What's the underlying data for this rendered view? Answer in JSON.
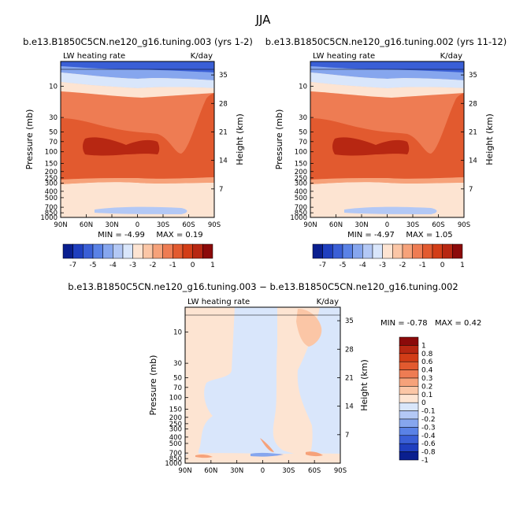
{
  "figure": {
    "title": "JJA"
  },
  "colors": {
    "panel_scale": [
      "#0a1f8f",
      "#1f3fbf",
      "#3a5fd6",
      "#5a82e6",
      "#86a6ee",
      "#b3c8f5",
      "#d9e6fb",
      "#fde4d2",
      "#fbc6a6",
      "#f6a27a",
      "#ee7c53",
      "#e25a2f",
      "#d23d17",
      "#b72712",
      "#8b0a0a"
    ],
    "diff_scale": [
      "#0a1f8f",
      "#1f3fbf",
      "#3a5fd6",
      "#5a82e6",
      "#86a6ee",
      "#b3c8f5",
      "#d9e6fb",
      "#fde4d2",
      "#fbc6a6",
      "#f6a27a",
      "#ee7c53",
      "#e25a2f",
      "#d23d17",
      "#b72712",
      "#8b0a0a"
    ]
  },
  "chart_data": [
    {
      "type": "heatmap",
      "title": "b.e13.B1850C5CN.ne120_g16.tuning.003 (yrs 1-2)",
      "left_label": "LW heating rate",
      "right_label": "K/day",
      "ylabel": "Pressure (mb)",
      "y2label": "Height (km)",
      "x_ticks": [
        "90N",
        "60N",
        "30N",
        "0",
        "30S",
        "60S",
        "90S"
      ],
      "y_ticks": [
        "10",
        "30",
        "50",
        "70",
        "100",
        "150",
        "200",
        "250",
        "300",
        "400",
        "500",
        "700",
        "850",
        "1000"
      ],
      "y2_ticks": [
        "35",
        "28",
        "21",
        "14",
        "7"
      ],
      "min_text": "MIN =    -4.99",
      "max_text": "MAX =    0.19",
      "colorbar_labels": [
        "-7",
        "-5",
        "-4",
        "-3",
        "-2",
        "-1",
        "0",
        "1"
      ]
    },
    {
      "type": "heatmap",
      "title": "b.e13.B1850C5CN.ne120_g16.tuning.002 (yrs 11-12)",
      "left_label": "LW heating rate",
      "right_label": "K/day",
      "ylabel": "Pressure (mb)",
      "y2label": "Height (km)",
      "x_ticks": [
        "90N",
        "60N",
        "30N",
        "0",
        "30S",
        "60S",
        "90S"
      ],
      "y_ticks": [
        "10",
        "30",
        "50",
        "70",
        "100",
        "150",
        "200",
        "250",
        "300",
        "400",
        "500",
        "700",
        "850",
        "1000"
      ],
      "y2_ticks": [
        "35",
        "28",
        "21",
        "14",
        "7"
      ],
      "min_text": "MIN =    -4.97",
      "max_text": "MAX =    1.05",
      "colorbar_labels": [
        "-7",
        "-5",
        "-4",
        "-3",
        "-2",
        "-1",
        "0",
        "1"
      ]
    },
    {
      "type": "heatmap",
      "title": "b.e13.B1850C5CN.ne120_g16.tuning.003 − b.e13.B1850C5CN.ne120_g16.tuning.002",
      "left_label": "LW heating rate",
      "right_label": "K/day",
      "ylabel": "Pressure (mb)",
      "y2label": "Height (km)",
      "x_ticks": [
        "90N",
        "60N",
        "30N",
        "0",
        "30S",
        "60S",
        "90S"
      ],
      "y_ticks": [
        "10",
        "30",
        "50",
        "70",
        "100",
        "150",
        "200",
        "250",
        "300",
        "400",
        "500",
        "700",
        "850",
        "1000"
      ],
      "y2_ticks": [
        "35",
        "28",
        "21",
        "14",
        "7"
      ],
      "min_text": "MIN =    -0.78",
      "max_text": "MAX =    0.42",
      "colorbar_labels": [
        "1",
        "0.8",
        "0.6",
        "0.4",
        "0.3",
        "0.2",
        "0.1",
        "0",
        "-0.1",
        "-0.2",
        "-0.3",
        "-0.4",
        "-0.6",
        "-0.8",
        "-1"
      ]
    }
  ]
}
